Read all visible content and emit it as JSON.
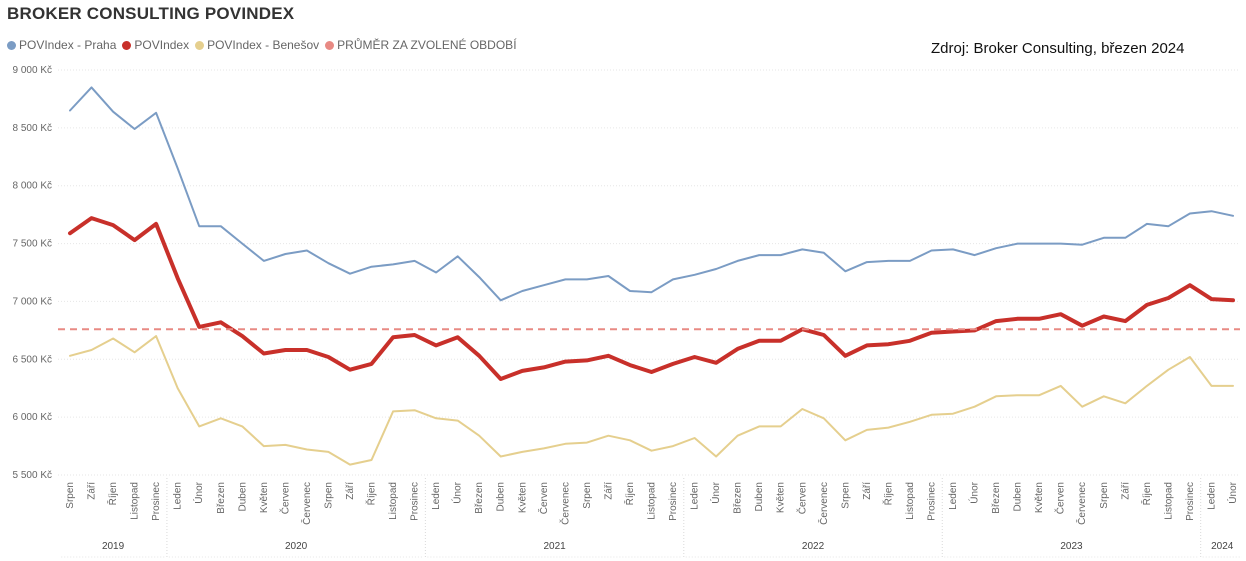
{
  "title": "BROKER CONSULTING POVINDEX",
  "source": "Zdroj: Broker Consulting, březen 2024",
  "colors": {
    "praha": "#7B9CC4",
    "povindex": "#C8302A",
    "benesov": "#E5CF8E",
    "average": "#E88A84"
  },
  "chart_data": {
    "type": "line",
    "title": "BROKER CONSULTING POVINDEX",
    "ylim": [
      5500,
      9000
    ],
    "yticks": [
      "5 500 Kč",
      "6 000 Kč",
      "6 500 Kč",
      "7 000 Kč",
      "7 500 Kč",
      "8 000 Kč",
      "8 500 Kč",
      "9 000 Kč"
    ],
    "ytick_values": [
      5500,
      6000,
      6500,
      7000,
      7500,
      8000,
      8500,
      9000
    ],
    "grid": true,
    "legend_position": "top-left",
    "categories": [
      "Srpen",
      "Září",
      "Říjen",
      "Listopad",
      "Prosinec",
      "Leden",
      "Únor",
      "Březen",
      "Duben",
      "Květen",
      "Červen",
      "Červenec",
      "Srpen",
      "Září",
      "Říjen",
      "Listopad",
      "Prosinec",
      "Leden",
      "Únor",
      "Březen",
      "Duben",
      "Květen",
      "Červen",
      "Červenec",
      "Srpen",
      "Září",
      "Říjen",
      "Listopad",
      "Prosinec",
      "Leden",
      "Únor",
      "Březen",
      "Duben",
      "Květen",
      "Červen",
      "Červenec",
      "Srpen",
      "Září",
      "Říjen",
      "Listopad",
      "Prosinec",
      "Leden",
      "Únor",
      "Březen",
      "Duben",
      "Květen",
      "Červen",
      "Červenec",
      "Srpen",
      "Září",
      "Říjen",
      "Listopad",
      "Prosinec",
      "Leden",
      "Únor"
    ],
    "years": [
      {
        "label": "2019",
        "start": 0,
        "end": 4
      },
      {
        "label": "2020",
        "start": 5,
        "end": 16
      },
      {
        "label": "2021",
        "start": 17,
        "end": 28
      },
      {
        "label": "2022",
        "start": 29,
        "end": 40
      },
      {
        "label": "2023",
        "start": 41,
        "end": 52
      },
      {
        "label": "2024",
        "start": 53,
        "end": 54
      }
    ],
    "series": [
      {
        "name": "POVIndex - Praha",
        "key": "praha",
        "width": 2,
        "values": [
          8650,
          8850,
          8640,
          8490,
          8630,
          8150,
          7650,
          7650,
          7500,
          7350,
          7410,
          7440,
          7330,
          7240,
          7300,
          7320,
          7350,
          7250,
          7390,
          7210,
          7010,
          7090,
          7140,
          7190,
          7190,
          7220,
          7090,
          7080,
          7190,
          7230,
          7280,
          7350,
          7400,
          7400,
          7450,
          7420,
          7260,
          7340,
          7350,
          7350,
          7440,
          7450,
          7400,
          7460,
          7500,
          7500,
          7500,
          7490,
          7550,
          7550,
          7670,
          7650,
          7760,
          7780,
          7740
        ]
      },
      {
        "name": "POVIndex",
        "key": "povindex",
        "width": 4,
        "values": [
          7590,
          7720,
          7660,
          7530,
          7670,
          7200,
          6780,
          6820,
          6700,
          6550,
          6580,
          6580,
          6520,
          6410,
          6460,
          6690,
          6710,
          6620,
          6690,
          6530,
          6330,
          6400,
          6430,
          6480,
          6490,
          6530,
          6450,
          6390,
          6460,
          6520,
          6470,
          6590,
          6660,
          6660,
          6760,
          6710,
          6530,
          6620,
          6630,
          6660,
          6730,
          6740,
          6750,
          6830,
          6850,
          6850,
          6890,
          6790,
          6870,
          6830,
          6970,
          7030,
          7140,
          7020,
          7010
        ]
      },
      {
        "name": "POVIndex - Benešov",
        "key": "benesov",
        "width": 2,
        "values": [
          6530,
          6580,
          6680,
          6560,
          6700,
          6250,
          5920,
          5990,
          5920,
          5750,
          5760,
          5720,
          5700,
          5590,
          5630,
          6050,
          6060,
          5990,
          5970,
          5840,
          5660,
          5700,
          5730,
          5770,
          5780,
          5840,
          5800,
          5710,
          5750,
          5820,
          5660,
          5840,
          5920,
          5920,
          6070,
          5990,
          5800,
          5890,
          5910,
          5960,
          6020,
          6030,
          6090,
          6180,
          6190,
          6190,
          6270,
          6090,
          6180,
          6120,
          6270,
          6410,
          6520,
          6270,
          6270
        ]
      },
      {
        "name": "PRŮMĚR ZA ZVOLENÉ OBDOBÍ",
        "key": "average",
        "dashed": true,
        "value": 6760
      }
    ]
  }
}
